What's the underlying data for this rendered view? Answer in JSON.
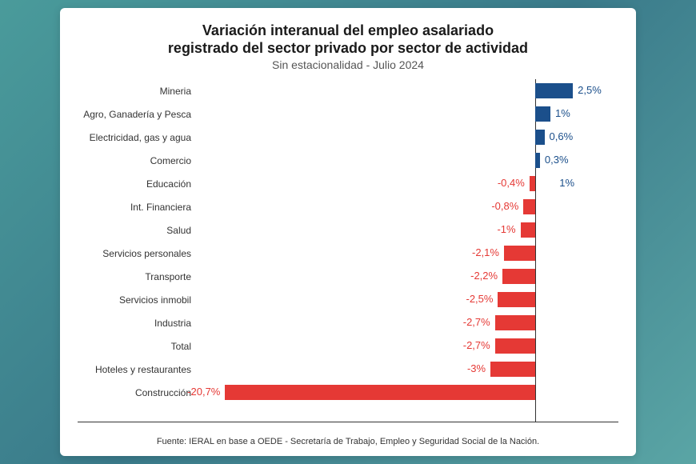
{
  "chart": {
    "type": "bar",
    "title_line1": "Variación interanual del empleo asalariado",
    "title_line2": "registrado del sector privado por sector de actividad",
    "subtitle": "Sin estacionalidad - Julio 2024",
    "title_fontsize": 18,
    "subtitle_fontsize": 14,
    "label_fontsize": 12,
    "value_fontsize": 13,
    "colors": {
      "positive": "#1b4f8b",
      "negative": "#e53935",
      "positive_text": "#1b4f8b",
      "negative_text": "#e53935",
      "background": "#ffffff",
      "axis": "#333333",
      "page_bg_a": "#4a9b9b",
      "page_bg_b": "#3a7a8a"
    },
    "xlim": [
      -22,
      5
    ],
    "zero_at_pct": 81,
    "items": [
      {
        "label": "Mineria",
        "value": 2.5,
        "display": "2,5%",
        "positive": true
      },
      {
        "label": "Agro, Ganadería y Pesca",
        "value": 1.0,
        "display": "1%",
        "positive": true
      },
      {
        "label": "Electricidad, gas y agua",
        "value": 0.6,
        "display": "0,6%",
        "positive": true
      },
      {
        "label": "Comercio",
        "value": 0.3,
        "display": "0,3%",
        "positive": true
      },
      {
        "label": "Educación",
        "value": -0.4,
        "display": "-0,4%",
        "positive": false,
        "extra_right": "1%"
      },
      {
        "label": "Int. Financiera",
        "value": -0.8,
        "display": "-0,8%",
        "positive": false
      },
      {
        "label": "Salud",
        "value": -1.0,
        "display": "-1%",
        "positive": false
      },
      {
        "label": "Servicios personales",
        "value": -2.1,
        "display": "-2,1%",
        "positive": false
      },
      {
        "label": "Transporte",
        "value": -2.2,
        "display": "-2,2%",
        "positive": false
      },
      {
        "label": "Servicios inmobil",
        "value": -2.5,
        "display": "-2,5%",
        "positive": false
      },
      {
        "label": "Industria",
        "value": -2.7,
        "display": "-2,7%",
        "positive": false
      },
      {
        "label": "Total",
        "value": -2.7,
        "display": "-2,7%",
        "positive": false
      },
      {
        "label": "Hoteles y restaurantes",
        "value": -3.0,
        "display": "-3%",
        "positive": false
      },
      {
        "label": "Construcción",
        "value": -20.7,
        "display": "-20,7%",
        "positive": false
      }
    ],
    "footer": "Fuente: IERAL en base a OEDE - Secretaría de Trabajo, Empleo y Seguridad Social de la Nación."
  }
}
